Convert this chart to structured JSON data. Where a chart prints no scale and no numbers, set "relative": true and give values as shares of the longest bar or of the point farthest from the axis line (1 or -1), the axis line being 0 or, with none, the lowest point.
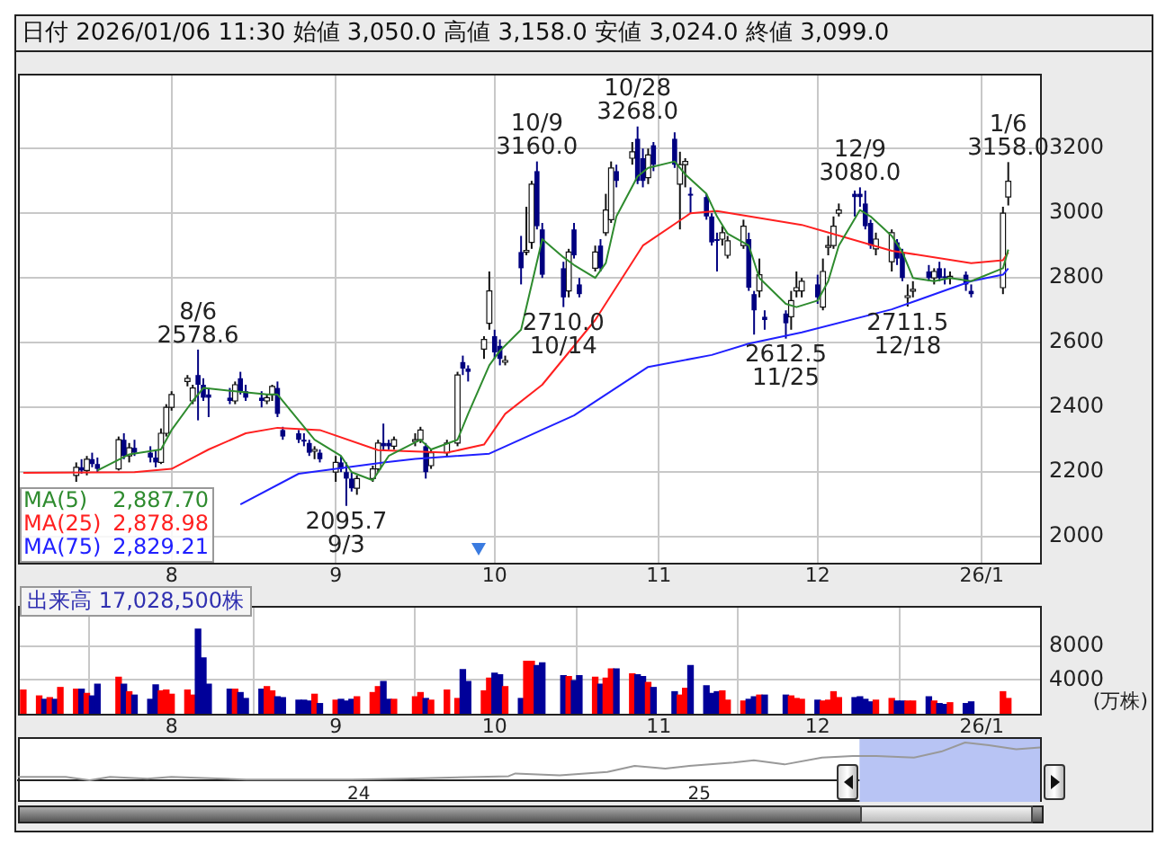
{
  "chart_data": [
    {
      "type": "candlestick",
      "title": "日付 2026/01/06 11:30 始値 3,050.0 高値 3,158.0 安値 3,024.0 終値 3,099.0",
      "xlim": [
        "2025-07-03",
        "2026-01-12"
      ],
      "xticks": [
        {
          "value": "2025-08-01",
          "label": "8"
        },
        {
          "value": "2025-09-01",
          "label": "9"
        },
        {
          "value": "2025-10-01",
          "label": "10"
        },
        {
          "value": "2025-11-01",
          "label": "11"
        },
        {
          "value": "2025-12-01",
          "label": "12"
        },
        {
          "value": "2026-01-01",
          "label": "26/1"
        }
      ],
      "ylim": [
        1920,
        3430
      ],
      "yticks": [
        2000,
        2200,
        2400,
        2600,
        2800,
        3000,
        3200
      ],
      "grid": true,
      "legend": "bottom left",
      "marker": "none",
      "line_style": "solid",
      "series": [
        {
          "color": "#ffffff",
          "x": [
            "2025-07-14",
            "2025-07-16",
            "2025-07-22",
            "2025-07-24",
            "2025-07-30",
            "2025-07-31",
            "2025-08-01",
            "2025-08-04",
            "2025-08-05",
            "2025-08-13",
            "2025-08-19",
            "2025-08-20",
            "2025-08-28",
            "2025-09-01",
            "2025-09-05",
            "2025-09-08",
            "2025-09-09",
            "2025-09-12",
            "2025-09-16",
            "2025-09-17",
            "2025-09-19",
            "2025-09-22",
            "2025-09-24",
            "2025-09-29",
            "2025-09-30",
            "2025-10-03",
            "2025-10-07",
            "2025-10-08",
            "2025-10-15",
            "2025-10-20",
            "2025-10-22",
            "2025-10-23",
            "2025-10-27",
            "2025-10-30",
            "2025-11-05",
            "2025-11-06",
            "2025-11-13",
            "2025-11-14",
            "2025-11-17",
            "2025-11-20",
            "2025-11-26",
            "2025-11-27",
            "2025-11-28",
            "2025-12-02",
            "2025-12-03",
            "2025-12-04",
            "2025-12-05",
            "2025-12-12",
            "2025-12-15",
            "2025-12-18",
            "2025-12-19",
            "2025-12-23",
            "2025-12-26",
            "2026-01-05",
            "2026-01-06"
          ],
          "ohlc": [
            [
              2190,
              2230,
              2170,
              2215
            ],
            [
              2205,
              2250,
              2190,
              2240
            ],
            [
              2210,
              2310,
              2205,
              2300
            ],
            [
              2250,
              2290,
              2230,
              2275
            ],
            [
              2230,
              2335,
              2225,
              2320
            ],
            [
              2320,
              2410,
              2310,
              2400
            ],
            [
              2400,
              2450,
              2390,
              2440
            ],
            [
              2480,
              2500,
              2465,
              2490
            ],
            [
              2420,
              2470,
              2410,
              2460
            ],
            [
              2420,
              2480,
              2410,
              2470
            ],
            [
              2420,
              2440,
              2410,
              2430
            ],
            [
              2440,
              2470,
              2420,
              2465
            ],
            [
              2265,
              2280,
              2240,
              2270
            ],
            [
              2200,
              2250,
              2170,
              2230
            ],
            [
              2150,
              2190,
              2130,
              2180
            ],
            [
              2180,
              2220,
              2170,
              2210
            ],
            [
              2210,
              2300,
              2200,
              2290
            ],
            [
              2280,
              2310,
              2270,
              2300
            ],
            [
              2300,
              2320,
              2280,
              2300
            ],
            [
              2300,
              2340,
              2290,
              2330
            ],
            [
              2220,
              2270,
              2210,
              2260
            ],
            [
              2260,
              2300,
              2250,
              2290
            ],
            [
              2290,
              2510,
              2280,
              2500
            ],
            [
              2580,
              2620,
              2550,
              2610
            ],
            [
              2660,
              2820,
              2640,
              2760
            ],
            [
              2540,
              2560,
              2530,
              2545
            ],
            [
              2880,
              3020,
              2870,
              2885
            ],
            [
              2910,
              3100,
              2890,
              3090
            ],
            [
              2760,
              2890,
              2740,
              2880
            ],
            [
              2830,
              2900,
              2820,
              2880
            ],
            [
              2940,
              3060,
              2930,
              3010
            ],
            [
              2980,
              3160,
              2970,
              3140
            ],
            [
              3170,
              3220,
              3150,
              3190
            ],
            [
              3110,
              3200,
              3090,
              3180
            ],
            [
              3090,
              3190,
              2950,
              3150
            ],
            [
              3150,
              3170,
              3080,
              3160
            ],
            [
              2920,
              2960,
              2900,
              2940
            ],
            [
              2870,
              2930,
              2860,
              2915
            ],
            [
              2900,
              2980,
              2890,
              2960
            ],
            [
              2760,
              2860,
              2740,
              2810
            ],
            [
              2680,
              2760,
              2640,
              2730
            ],
            [
              2760,
              2820,
              2740,
              2770
            ],
            [
              2760,
              2800,
              2740,
              2790
            ],
            [
              2710,
              2860,
              2700,
              2820
            ],
            [
              2895,
              2930,
              2870,
              2900
            ],
            [
              2900,
              2990,
              2890,
              2960
            ],
            [
              3000,
              3030,
              2990,
              3010
            ],
            [
              2890,
              2940,
              2870,
              2920
            ],
            [
              2850,
              2950,
              2820,
              2940
            ],
            [
              2740,
              2780,
              2711.5,
              2745
            ],
            [
              2760,
              2790,
              2740,
              2765
            ],
            [
              2800,
              2830,
              2780,
              2820
            ],
            [
              2800,
              2820,
              2780,
              2805
            ],
            [
              2770,
              3020,
              2750,
              3000
            ],
            [
              3050,
              3158,
              3024,
              3099
            ]
          ]
        },
        {
          "color": "#000080",
          "x": [
            "2025-07-15",
            "2025-07-17",
            "2025-07-18",
            "2025-07-23",
            "2025-07-25",
            "2025-07-28",
            "2025-07-29",
            "2025-08-06",
            "2025-08-07",
            "2025-08-08",
            "2025-08-12",
            "2025-08-14",
            "2025-08-15",
            "2025-08-18",
            "2025-08-21",
            "2025-08-22",
            "2025-08-25",
            "2025-08-26",
            "2025-08-27",
            "2025-08-29",
            "2025-09-02",
            "2025-09-03",
            "2025-09-04",
            "2025-09-10",
            "2025-09-11",
            "2025-09-18",
            "2025-09-25",
            "2025-09-26",
            "2025-10-01",
            "2025-10-02",
            "2025-10-06",
            "2025-10-09",
            "2025-10-10",
            "2025-10-14",
            "2025-10-16",
            "2025-10-17",
            "2025-10-21",
            "2025-10-24",
            "2025-10-28",
            "2025-10-29",
            "2025-10-31",
            "2025-11-04",
            "2025-11-07",
            "2025-11-10",
            "2025-11-11",
            "2025-11-12",
            "2025-11-18",
            "2025-11-19",
            "2025-11-21",
            "2025-11-25",
            "2025-12-01",
            "2025-12-08",
            "2025-12-09",
            "2025-12-10",
            "2025-12-11",
            "2025-12-16",
            "2025-12-17",
            "2025-12-22",
            "2025-12-24",
            "2025-12-25",
            "2025-12-29",
            "2025-12-30"
          ],
          "ohlc": [
            [
              2215,
              2240,
              2195,
              2205
            ],
            [
              2240,
              2260,
              2215,
              2225
            ],
            [
              2225,
              2245,
              2200,
              2210
            ],
            [
              2300,
              2320,
              2240,
              2250
            ],
            [
              2275,
              2300,
              2250,
              2260
            ],
            [
              2260,
              2280,
              2230,
              2245
            ],
            [
              2245,
              2270,
              2215,
              2230
            ],
            [
              2500,
              2578.6,
              2360,
              2470
            ],
            [
              2470,
              2490,
              2420,
              2430
            ],
            [
              2440,
              2460,
              2370,
              2430
            ],
            [
              2430,
              2460,
              2410,
              2420
            ],
            [
              2490,
              2510,
              2440,
              2450
            ],
            [
              2450,
              2470,
              2420,
              2430
            ],
            [
              2430,
              2450,
              2400,
              2420
            ],
            [
              2460,
              2480,
              2370,
              2380
            ],
            [
              2330,
              2340,
              2300,
              2310
            ],
            [
              2320,
              2330,
              2290,
              2300
            ],
            [
              2300,
              2320,
              2280,
              2295
            ],
            [
              2290,
              2300,
              2250,
              2260
            ],
            [
              2260,
              2270,
              2230,
              2240
            ],
            [
              2230,
              2250,
              2200,
              2210
            ],
            [
              2200,
              2230,
              2095.7,
              2180
            ],
            [
              2180,
              2200,
              2140,
              2150
            ],
            [
              2290,
              2350,
              2270,
              2280
            ],
            [
              2290,
              2300,
              2270,
              2280
            ],
            [
              2280,
              2290,
              2180,
              2200
            ],
            [
              2540,
              2560,
              2500,
              2520
            ],
            [
              2520,
              2530,
              2480,
              2510
            ],
            [
              2620,
              2640,
              2550,
              2570
            ],
            [
              2590,
              2610,
              2530,
              2550
            ],
            [
              2880,
              2930,
              2780,
              2830
            ],
            [
              3130,
              3160,
              2950,
              2960
            ],
            [
              2950,
              2970,
              2800,
              2810
            ],
            [
              2830,
              2850,
              2710,
              2740
            ],
            [
              2950,
              2970,
              2860,
              2870
            ],
            [
              2780,
              2800,
              2740,
              2750
            ],
            [
              2900,
              2920,
              2820,
              2830
            ],
            [
              3130,
              3150,
              3080,
              3100
            ],
            [
              3230,
              3268,
              3090,
              3100
            ],
            [
              3170,
              3200,
              3080,
              3100
            ],
            [
              3210,
              3220,
              3130,
              3150
            ],
            [
              3230,
              3250,
              3140,
              3150
            ],
            [
              3060,
              3080,
              3000,
              3055
            ],
            [
              3050,
              3060,
              2980,
              2990
            ],
            [
              2990,
              3000,
              2900,
              2910
            ],
            [
              2920,
              2940,
              2820,
              2915
            ],
            [
              2920,
              2940,
              2760,
              2770
            ],
            [
              2750,
              2760,
              2625,
              2700
            ],
            [
              2680,
              2700,
              2640,
              2670
            ],
            [
              2690,
              2700,
              2612.5,
              2660
            ],
            [
              2780,
              2810,
              2720,
              2740
            ],
            [
              3060,
              3070,
              2990,
              3050
            ],
            [
              3060,
              3080,
              3020,
              3050
            ],
            [
              3030,
              3070,
              2950,
              2960
            ],
            [
              2970,
              2980,
              2890,
              2900
            ],
            [
              2910,
              2920,
              2840,
              2860
            ],
            [
              2880,
              2890,
              2790,
              2800
            ],
            [
              2820,
              2840,
              2790,
              2800
            ],
            [
              2830,
              2850,
              2790,
              2800
            ],
            [
              2805,
              2830,
              2780,
              2800
            ],
            [
              2810,
              2820,
              2760,
              2780
            ],
            [
              2760,
              2780,
              2740,
              2750
            ]
          ]
        },
        {
          "type": "line",
          "name": "MA(5) 2,887.70",
          "color": "#2e8b2e",
          "x": [
            "2025-07-18",
            "2025-07-24",
            "2025-07-30",
            "2025-08-01",
            "2025-08-05",
            "2025-08-07",
            "2025-08-13",
            "2025-08-19",
            "2025-08-21",
            "2025-08-25",
            "2025-08-28",
            "2025-09-02",
            "2025-09-04",
            "2025-09-08",
            "2025-09-11",
            "2025-09-17",
            "2025-09-19",
            "2025-09-24",
            "2025-09-26",
            "2025-09-30",
            "2025-10-02",
            "2025-10-06",
            "2025-10-08",
            "2025-10-10",
            "2025-10-14",
            "2025-10-16",
            "2025-10-20",
            "2025-10-22",
            "2025-10-24",
            "2025-10-28",
            "2025-10-30",
            "2025-11-04",
            "2025-11-06",
            "2025-11-10",
            "2025-11-12",
            "2025-11-14",
            "2025-11-18",
            "2025-11-20",
            "2025-11-25",
            "2025-11-27",
            "2025-12-01",
            "2025-12-03",
            "2025-12-05",
            "2025-12-09",
            "2025-12-11",
            "2025-12-15",
            "2025-12-17",
            "2025-12-19",
            "2025-12-23",
            "2025-12-26",
            "2025-12-30",
            "2026-01-05",
            "2026-01-06"
          ],
          "values": [
            2205,
            2255,
            2270,
            2330,
            2420,
            2460,
            2450,
            2440,
            2440,
            2360,
            2300,
            2250,
            2200,
            2175,
            2250,
            2300,
            2270,
            2300,
            2380,
            2530,
            2575,
            2640,
            2780,
            2920,
            2864,
            2840,
            2800,
            2846,
            2990,
            3114,
            3140,
            3160,
            3120,
            3060,
            2990,
            2937,
            2900,
            2800,
            2720,
            2710,
            2730,
            2790,
            2900,
            3010,
            2990,
            2930,
            2880,
            2800,
            2790,
            2800,
            2790,
            2830,
            2887.7
          ]
        },
        {
          "type": "line",
          "name": "MA(25) 2,878.98",
          "color": "#ff2020",
          "x": [
            "2025-07-04",
            "2025-07-25",
            "2025-08-01",
            "2025-08-08",
            "2025-08-15",
            "2025-08-21",
            "2025-08-29",
            "2025-09-09",
            "2025-09-22",
            "2025-09-29",
            "2025-10-03",
            "2025-10-10",
            "2025-10-20",
            "2025-10-29",
            "2025-11-07",
            "2025-11-12",
            "2025-11-28",
            "2025-12-15",
            "2025-12-30",
            "2026-01-05",
            "2026-01-06"
          ],
          "values": [
            2198,
            2200,
            2210,
            2270,
            2320,
            2337,
            2330,
            2268,
            2260,
            2285,
            2380,
            2470,
            2670,
            2900,
            3000,
            3007,
            2964,
            2884,
            2846,
            2855,
            2878.98
          ]
        },
        {
          "type": "line",
          "name": "MA(75) 2,829.21",
          "color": "#2020ff",
          "x": [
            "2025-08-14",
            "2025-08-25",
            "2025-09-10",
            "2025-09-16",
            "2025-09-30",
            "2025-10-16",
            "2025-10-30",
            "2025-11-11",
            "2025-11-18",
            "2025-11-28",
            "2025-12-15",
            "2025-12-30",
            "2026-01-05",
            "2026-01-06"
          ],
          "values": [
            2100,
            2195,
            2230,
            2241,
            2257,
            2375,
            2525,
            2562,
            2597,
            2632,
            2703,
            2790,
            2810,
            2829.21
          ]
        }
      ],
      "annotations": [
        {
          "text": "8/6\n2578.6",
          "x": "2025-08-06",
          "y": 2578.6
        },
        {
          "text": "2095.7\n9/3",
          "x": "2025-09-03",
          "y": 2095.7
        },
        {
          "text": "10/9\n3160.0",
          "x": "2025-10-09",
          "y": 3160
        },
        {
          "text": "2710.0\n10/14",
          "x": "2025-10-14",
          "y": 2710
        },
        {
          "text": "10/28\n3268.0",
          "x": "2025-10-28",
          "y": 3268
        },
        {
          "text": "2612.5\n11/25",
          "x": "2025-11-25",
          "y": 2612.5
        },
        {
          "text": "12/9\n3080.0",
          "x": "2025-12-09",
          "y": 3080
        },
        {
          "text": "2711.5\n12/18",
          "x": "2025-12-18",
          "y": 2711.5
        },
        {
          "text": "1/6\n3158.0",
          "x": "2026-01-06",
          "y": 3158
        }
      ]
    },
    {
      "type": "bar",
      "title": "出来高 17,028,500株",
      "ylabel": "(万株)",
      "x": [
        "2025-07-04",
        "2025-07-07",
        "2025-07-08",
        "2025-07-09",
        "2025-07-10",
        "2025-07-11",
        "2025-07-14",
        "2025-07-15",
        "2025-07-16",
        "2025-07-17",
        "2025-07-18",
        "2025-07-22",
        "2025-07-23",
        "2025-07-24",
        "2025-07-25",
        "2025-07-28",
        "2025-07-29",
        "2025-07-30",
        "2025-07-31",
        "2025-08-01",
        "2025-08-04",
        "2025-08-05",
        "2025-08-06",
        "2025-08-07",
        "2025-08-08",
        "2025-08-12",
        "2025-08-13",
        "2025-08-14",
        "2025-08-15",
        "2025-08-18",
        "2025-08-19",
        "2025-08-20",
        "2025-08-21",
        "2025-08-22",
        "2025-08-25",
        "2025-08-26",
        "2025-08-27",
        "2025-08-28",
        "2025-08-29",
        "2025-09-01",
        "2025-09-02",
        "2025-09-03",
        "2025-09-04",
        "2025-09-05",
        "2025-09-08",
        "2025-09-09",
        "2025-09-10",
        "2025-09-11",
        "2025-09-12",
        "2025-09-16",
        "2025-09-17",
        "2025-09-18",
        "2025-09-19",
        "2025-09-22",
        "2025-09-24",
        "2025-09-25",
        "2025-09-26",
        "2025-09-29",
        "2025-09-30",
        "2025-10-01",
        "2025-10-02",
        "2025-10-03",
        "2025-10-06",
        "2025-10-07",
        "2025-10-08",
        "2025-10-09",
        "2025-10-10",
        "2025-10-14",
        "2025-10-15",
        "2025-10-16",
        "2025-10-17",
        "2025-10-20",
        "2025-10-21",
        "2025-10-22",
        "2025-10-23",
        "2025-10-24",
        "2025-10-27",
        "2025-10-28",
        "2025-10-29",
        "2025-10-30",
        "2025-10-31",
        "2025-11-04",
        "2025-11-05",
        "2025-11-06",
        "2025-11-07",
        "2025-11-10",
        "2025-11-11",
        "2025-11-12",
        "2025-11-13",
        "2025-11-14",
        "2025-11-17",
        "2025-11-18",
        "2025-11-19",
        "2025-11-20",
        "2025-11-21",
        "2025-11-25",
        "2025-11-26",
        "2025-11-27",
        "2025-11-28",
        "2025-12-01",
        "2025-12-02",
        "2025-12-03",
        "2025-12-04",
        "2025-12-05",
        "2025-12-08",
        "2025-12-09",
        "2025-12-10",
        "2025-12-11",
        "2025-12-12",
        "2025-12-15",
        "2025-12-16",
        "2025-12-17",
        "2025-12-18",
        "2025-12-19",
        "2025-12-22",
        "2025-12-23",
        "2025-12-24",
        "2025-12-25",
        "2025-12-26",
        "2025-12-29",
        "2025-12-30",
        "2026-01-05",
        "2026-01-06"
      ],
      "xlim": [
        "2025-07-03",
        "2026-01-12"
      ],
      "xticks": [
        {
          "value": "2025-08-01",
          "label": "8"
        },
        {
          "value": "2025-09-01",
          "label": "9"
        },
        {
          "value": "2025-10-01",
          "label": "10"
        },
        {
          "value": "2025-11-01",
          "label": "11"
        },
        {
          "value": "2025-12-01",
          "label": "12"
        },
        {
          "value": "2026-01-01",
          "label": "26/1"
        }
      ],
      "ylim": [
        0,
        12700
      ],
      "yticks": [
        4000,
        8000
      ],
      "grid": true,
      "series": [
        {
          "values": [
            2800,
            2100,
            1700,
            1900,
            1700,
            3100,
            2900,
            2900,
            2400,
            2100,
            3500,
            4300,
            3500,
            2600,
            2200,
            1700,
            3400,
            2700,
            2800,
            2300,
            2800,
            2200,
            10000,
            6600,
            3500,
            2900,
            2900,
            2500,
            1800,
            2900,
            3200,
            2700,
            2000,
            1900,
            1600,
            1600,
            1500,
            2300,
            1200,
            1600,
            1700,
            1500,
            1700,
            2000,
            2500,
            3200,
            3800,
            1700,
            1700,
            2000,
            2500,
            1800,
            1600,
            2800,
            1800,
            5200,
            3800,
            2700,
            4200,
            4800,
            4600,
            3200,
            1800,
            6200,
            6200,
            5700,
            6000,
            4500,
            4400,
            3900,
            4500,
            4300,
            3500,
            4200,
            5300,
            5300,
            4700,
            4600,
            4400,
            3700,
            3100,
            2600,
            2200,
            3000,
            5700,
            3300,
            2400,
            2600,
            2700,
            1600,
            1500,
            1700,
            2000,
            2200,
            2200,
            2200,
            2100,
            1800,
            1700,
            1600,
            1500,
            1600,
            2600,
            1900,
            1900,
            2000,
            1700,
            1400,
            1600,
            1800,
            1500,
            1500,
            1500,
            1500,
            2000,
            1500,
            1200,
            1100,
            1300,
            1200,
            1400,
            2600,
            1800
          ],
          "colors": [
            "#ff0000",
            "#ff0000",
            "#000099",
            "#ff0000",
            "#000099",
            "#ff0000",
            "#ff0000",
            "#000099",
            "#ff0000",
            "#000099",
            "#000099",
            "#ff0000",
            "#000099",
            "#ff0000",
            "#000099",
            "#000099",
            "#000099",
            "#ff0000",
            "#ff0000",
            "#ff0000",
            "#ff0000",
            "#ff0000",
            "#000099",
            "#000099",
            "#000099",
            "#000099",
            "#ff0000",
            "#000099",
            "#000099",
            "#000099",
            "#ff0000",
            "#ff0000",
            "#000099",
            "#000099",
            "#000099",
            "#000099",
            "#000099",
            "#ff0000",
            "#000099",
            "#ff0000",
            "#000099",
            "#000099",
            "#000099",
            "#ff0000",
            "#ff0000",
            "#ff0000",
            "#000099",
            "#000099",
            "#ff0000",
            "#ff0000",
            "#ff0000",
            "#000099",
            "#ff0000",
            "#ff0000",
            "#ff0000",
            "#000099",
            "#000099",
            "#ff0000",
            "#ff0000",
            "#000099",
            "#000099",
            "#ff0000",
            "#000099",
            "#ff0000",
            "#ff0000",
            "#000099",
            "#000099",
            "#000099",
            "#ff0000",
            "#000099",
            "#000099",
            "#ff0000",
            "#000099",
            "#ff0000",
            "#ff0000",
            "#000099",
            "#ff0000",
            "#000099",
            "#000099",
            "#ff0000",
            "#000099",
            "#000099",
            "#ff0000",
            "#ff0000",
            "#000099",
            "#000099",
            "#000099",
            "#000099",
            "#ff0000",
            "#ff0000",
            "#ff0000",
            "#000099",
            "#000099",
            "#ff0000",
            "#000099",
            "#000099",
            "#ff0000",
            "#ff0000",
            "#ff0000",
            "#000099",
            "#ff0000",
            "#ff0000",
            "#ff0000",
            "#ff0000",
            "#000099",
            "#000099",
            "#000099",
            "#000099",
            "#ff0000",
            "#ff0000",
            "#000099",
            "#000099",
            "#ff0000",
            "#ff0000",
            "#000099",
            "#ff0000",
            "#000099",
            "#000099",
            "#ff0000",
            "#000099",
            "#000099",
            "#ff0000",
            "#ff0000"
          ]
        }
      ]
    },
    {
      "type": "line",
      "relative": true,
      "x": [
        2023.0,
        2023.14,
        2023.21,
        2023.27,
        2023.38,
        2023.45,
        2023.67,
        2023.98,
        2024.13,
        2024.44,
        2024.46,
        2024.59,
        2024.73,
        2024.81,
        2024.9,
        2024.97,
        2025.1,
        2025.16,
        2025.25,
        2025.36,
        2025.45,
        2025.52,
        2025.63,
        2025.71,
        2025.78,
        2025.85,
        2025.93,
        2026.0
      ],
      "xlim": [
        2023.0,
        2026.0
      ],
      "xticks": [
        {
          "value": 2024,
          "label": "24"
        },
        {
          "value": 2025,
          "label": "25"
        }
      ],
      "bands": [
        {
          "axis": "x",
          "from": 2025.47,
          "to": 2026.0,
          "color": "#b8c4f4"
        }
      ],
      "series": [
        {
          "color": "#999999",
          "values": [
            0.09,
            0.09,
            0,
            0.09,
            0.04,
            0.09,
            0.02,
            0.02,
            0.04,
            0.11,
            0.18,
            0.13,
            0.22,
            0.38,
            0.31,
            0.38,
            0.47,
            0.53,
            0.42,
            0.6,
            0.64,
            0.64,
            0.6,
            0.76,
            1,
            0.93,
            0.82,
            0.87
          ]
        }
      ]
    }
  ]
}
